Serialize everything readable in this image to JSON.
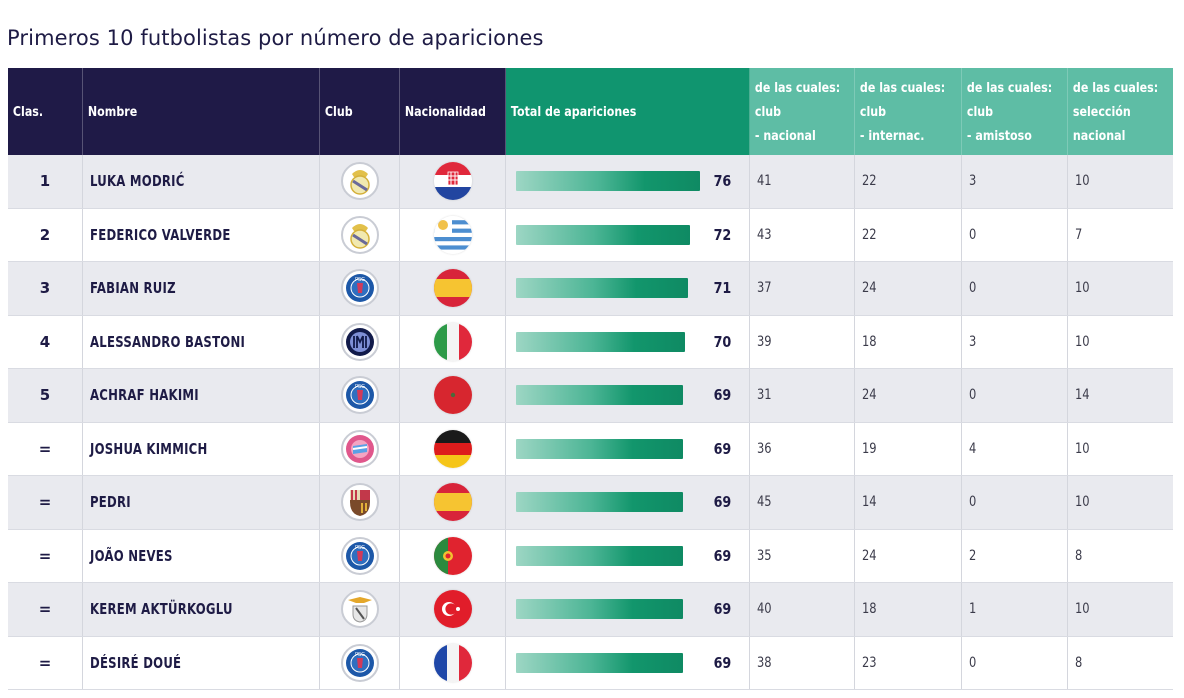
{
  "title": "Primeros 10 futbolistas por número de apariciones",
  "columns": {
    "rank": "Clas.",
    "name": "Nombre",
    "club": "Club",
    "nationality": "Nacionalidad",
    "total": "Total de apariciones",
    "club_national": [
      "de las cuales:",
      "club",
      "- nacional"
    ],
    "club_international": [
      "de las cuales:",
      "club",
      "- internac."
    ],
    "club_friendly": [
      "de las cuales:",
      "club",
      "- amistoso"
    ],
    "national_team": [
      "de las cuales:",
      "selección",
      "nacional"
    ]
  },
  "colors": {
    "header_navy": "#1f1a47",
    "header_green": "#10956f",
    "header_light_green": "#5ebda5",
    "row_alt": "#e9eaef",
    "text_dark": "#1e1b45"
  },
  "bar_max": 76,
  "rows": [
    {
      "rank": "1",
      "name": "LUKA MODRIĆ",
      "club": "real-madrid",
      "nationality": "croatia",
      "total": "76",
      "club_national": "41",
      "club_international": "22",
      "club_friendly": "3",
      "national_team": "10"
    },
    {
      "rank": "2",
      "name": "FEDERICO VALVERDE",
      "club": "real-madrid",
      "nationality": "uruguay",
      "total": "72",
      "club_national": "43",
      "club_international": "22",
      "club_friendly": "0",
      "national_team": "7"
    },
    {
      "rank": "3",
      "name": "FABIAN RUIZ",
      "club": "psg",
      "nationality": "spain",
      "total": "71",
      "club_national": "37",
      "club_international": "24",
      "club_friendly": "0",
      "national_team": "10"
    },
    {
      "rank": "4",
      "name": "ALESSANDRO BASTONI",
      "club": "inter",
      "nationality": "italy",
      "total": "70",
      "club_national": "39",
      "club_international": "18",
      "club_friendly": "3",
      "national_team": "10"
    },
    {
      "rank": "5",
      "name": "ACHRAF HAKIMI",
      "club": "psg",
      "nationality": "morocco",
      "total": "69",
      "club_national": "31",
      "club_international": "24",
      "club_friendly": "0",
      "national_team": "14"
    },
    {
      "rank": "=",
      "name": "JOSHUA KIMMICH",
      "club": "bayern",
      "nationality": "germany",
      "total": "69",
      "club_national": "36",
      "club_international": "19",
      "club_friendly": "4",
      "national_team": "10"
    },
    {
      "rank": "=",
      "name": "PEDRI",
      "club": "barcelona",
      "nationality": "spain",
      "total": "69",
      "club_national": "45",
      "club_international": "14",
      "club_friendly": "0",
      "national_team": "10"
    },
    {
      "rank": "=",
      "name": "JOÃO NEVES",
      "club": "psg",
      "nationality": "portugal",
      "total": "69",
      "club_national": "35",
      "club_international": "24",
      "club_friendly": "2",
      "national_team": "8"
    },
    {
      "rank": "=",
      "name": "KEREM AKTÜRKOGLU",
      "club": "benfica",
      "nationality": "turkey",
      "total": "69",
      "club_national": "40",
      "club_international": "18",
      "club_friendly": "1",
      "national_team": "10"
    },
    {
      "rank": "=",
      "name": "DÉSIRÉ DOUÉ",
      "club": "psg",
      "nationality": "france",
      "total": "69",
      "club_national": "38",
      "club_international": "23",
      "club_friendly": "0",
      "national_team": "8"
    }
  ]
}
